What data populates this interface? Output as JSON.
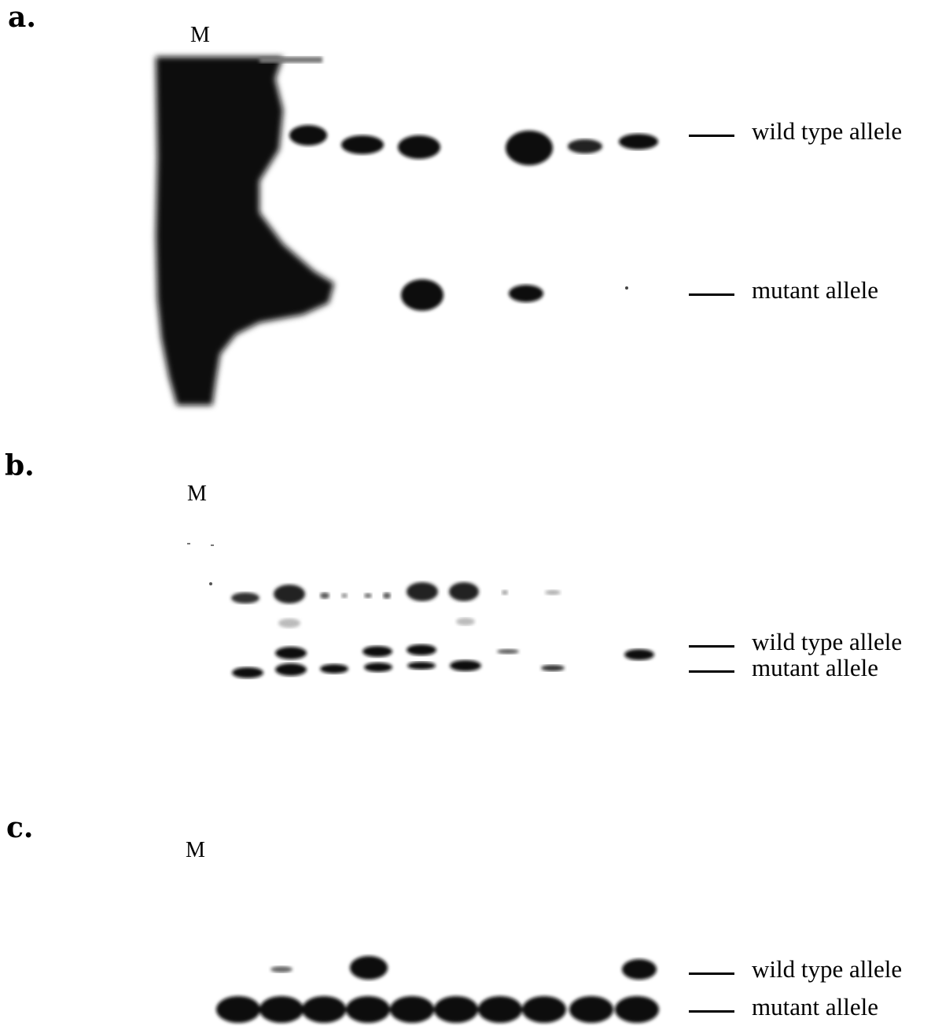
{
  "panels": [
    {
      "letter": "a.",
      "marker": "M",
      "labels": [
        "wild type allele",
        "mutant allele"
      ]
    },
    {
      "letter": "b.",
      "marker": "M",
      "labels": [
        "wild type allele",
        "mutant allele"
      ]
    },
    {
      "letter": "c.",
      "marker": "M",
      "labels": [
        "wild type allele",
        "mutant allele"
      ]
    }
  ]
}
